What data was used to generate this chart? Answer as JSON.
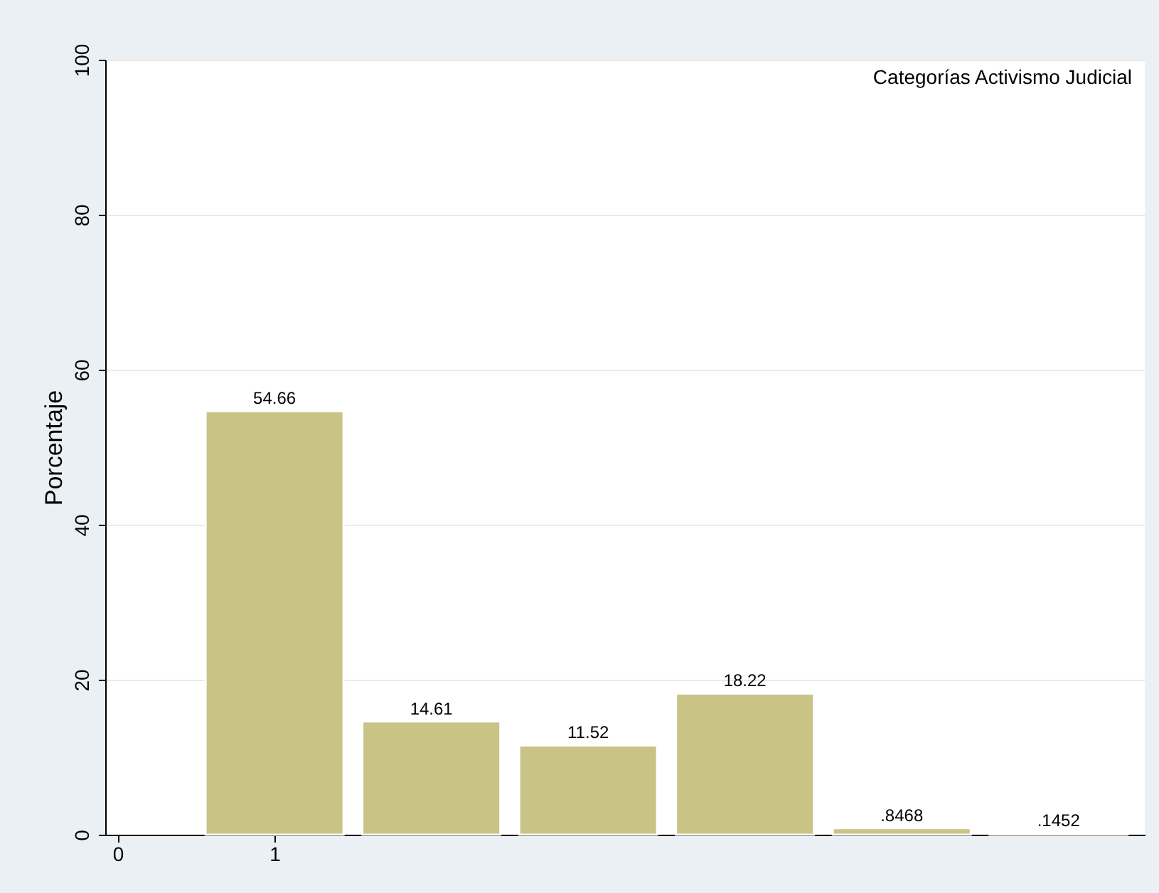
{
  "chart_data": {
    "type": "bar",
    "ylabel": "Porcentaje",
    "x": [
      1,
      2,
      3,
      4,
      5,
      6
    ],
    "values": [
      54.66,
      14.61,
      11.52,
      18.22,
      0.8468,
      0.1452
    ],
    "value_labels": [
      "54.66",
      "14.61",
      "11.52",
      "18.22",
      ".8468",
      ".1452"
    ],
    "color": "#c9c386",
    "xlim": [
      -0.08,
      6.55
    ],
    "xticks": [
      0,
      1
    ],
    "ylim": [
      0,
      100
    ],
    "yticks": [
      0,
      20,
      40,
      60,
      80,
      100
    ],
    "grid": "y",
    "annotations": [
      "Categorías Activismo Judicial"
    ]
  }
}
